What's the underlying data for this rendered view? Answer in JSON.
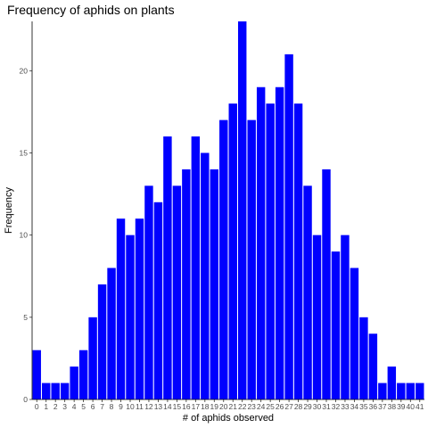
{
  "chart_data": {
    "type": "bar",
    "title": "Frequency of aphids on plants",
    "xlabel": "# of aphids observed",
    "ylabel": "Frequency",
    "categories": [
      "0",
      "1",
      "2",
      "3",
      "4",
      "5",
      "6",
      "7",
      "8",
      "9",
      "10",
      "11",
      "12",
      "13",
      "14",
      "15",
      "16",
      "17",
      "18",
      "19",
      "20",
      "21",
      "22",
      "23",
      "24",
      "25",
      "26",
      "27",
      "28",
      "29",
      "30",
      "31",
      "32",
      "33",
      "34",
      "35",
      "36",
      "37",
      "38",
      "39",
      "40",
      "41"
    ],
    "values": [
      3,
      1,
      1,
      1,
      2,
      3,
      5,
      7,
      8,
      11,
      10,
      11,
      13,
      12,
      16,
      13,
      14,
      16,
      15,
      14,
      17,
      18,
      23,
      17,
      19,
      18,
      19,
      21,
      18,
      13,
      10,
      14,
      9,
      10,
      8,
      5,
      4,
      1,
      2,
      1,
      1,
      1
    ],
    "y_ticks": [
      0,
      5,
      10,
      15,
      20
    ],
    "ylim": [
      0,
      23
    ],
    "grid": false,
    "bar_color": "#0000ff",
    "legend": "none"
  }
}
